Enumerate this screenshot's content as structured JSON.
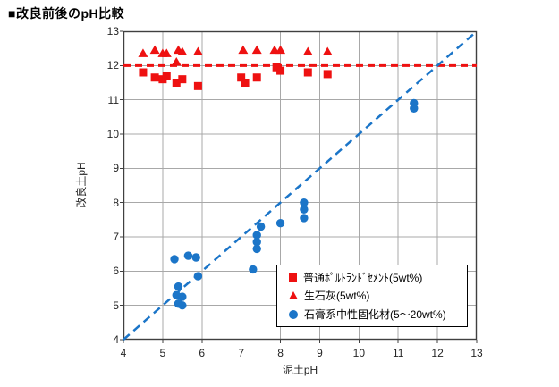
{
  "title": "■改良前後のpH比較",
  "chart_data": {
    "type": "scatter",
    "title": "改良前後のpH比較",
    "xlabel": "泥土pH",
    "ylabel": "改良土pH",
    "xlim": [
      4,
      13
    ],
    "ylim": [
      4,
      13
    ],
    "x_ticks": [
      4,
      5,
      6,
      7,
      8,
      9,
      10,
      11,
      12,
      13
    ],
    "y_ticks": [
      4,
      5,
      6,
      7,
      8,
      9,
      10,
      11,
      12,
      13
    ],
    "grid": true,
    "legend_position": "inside-bottom-right",
    "colors": {
      "red": "#ee1111",
      "blue": "#1b75c8",
      "gridline": "#a8a8a8",
      "plot_border": "#404040"
    },
    "series": [
      {
        "name": "普通ﾎﾟﾙﾄﾗﾝﾄﾞｾﾒﾝﾄ(5wt%)",
        "marker": "square",
        "color": "#ee1111",
        "points": [
          [
            4.5,
            11.8
          ],
          [
            4.8,
            11.65
          ],
          [
            5.0,
            11.6
          ],
          [
            5.1,
            11.7
          ],
          [
            5.35,
            11.5
          ],
          [
            5.5,
            11.6
          ],
          [
            5.9,
            11.4
          ],
          [
            7.0,
            11.65
          ],
          [
            7.1,
            11.5
          ],
          [
            7.4,
            11.65
          ],
          [
            7.9,
            11.95
          ],
          [
            8.0,
            11.85
          ],
          [
            8.7,
            11.8
          ],
          [
            9.2,
            11.75
          ]
        ]
      },
      {
        "name": "生石灰(5wt%)",
        "marker": "triangle",
        "color": "#ee1111",
        "points": [
          [
            4.5,
            12.35
          ],
          [
            4.8,
            12.45
          ],
          [
            5.0,
            12.35
          ],
          [
            5.1,
            12.35
          ],
          [
            5.35,
            12.1
          ],
          [
            5.4,
            12.45
          ],
          [
            5.5,
            12.4
          ],
          [
            5.9,
            12.4
          ],
          [
            7.05,
            12.45
          ],
          [
            7.4,
            12.45
          ],
          [
            7.85,
            12.45
          ],
          [
            8.0,
            12.45
          ],
          [
            8.7,
            12.4
          ],
          [
            9.2,
            12.4
          ]
        ]
      },
      {
        "name": "石膏系中性固化材(5～20wt%)",
        "marker": "circle",
        "color": "#1b75c8",
        "points": [
          [
            5.3,
            6.35
          ],
          [
            5.65,
            6.45
          ],
          [
            5.85,
            6.4
          ],
          [
            5.9,
            5.85
          ],
          [
            5.4,
            5.55
          ],
          [
            5.35,
            5.3
          ],
          [
            5.5,
            5.25
          ],
          [
            5.4,
            5.05
          ],
          [
            5.5,
            5.0
          ],
          [
            7.3,
            6.05
          ],
          [
            7.4,
            6.65
          ],
          [
            7.4,
            6.85
          ],
          [
            7.4,
            7.05
          ],
          [
            7.5,
            7.3
          ],
          [
            8.0,
            7.4
          ],
          [
            8.6,
            7.55
          ],
          [
            8.6,
            7.8
          ],
          [
            8.6,
            8.0
          ],
          [
            11.4,
            10.75
          ],
          [
            11.4,
            10.9
          ]
        ]
      }
    ],
    "reference_lines": [
      {
        "type": "horizontal",
        "y": 12,
        "style": "dashed",
        "color": "#ee1111",
        "width": 3
      },
      {
        "type": "diagonal",
        "from": [
          4,
          4
        ],
        "to": [
          13,
          13
        ],
        "style": "dashed",
        "color": "#1b75c8",
        "width": 2.5
      }
    ]
  }
}
